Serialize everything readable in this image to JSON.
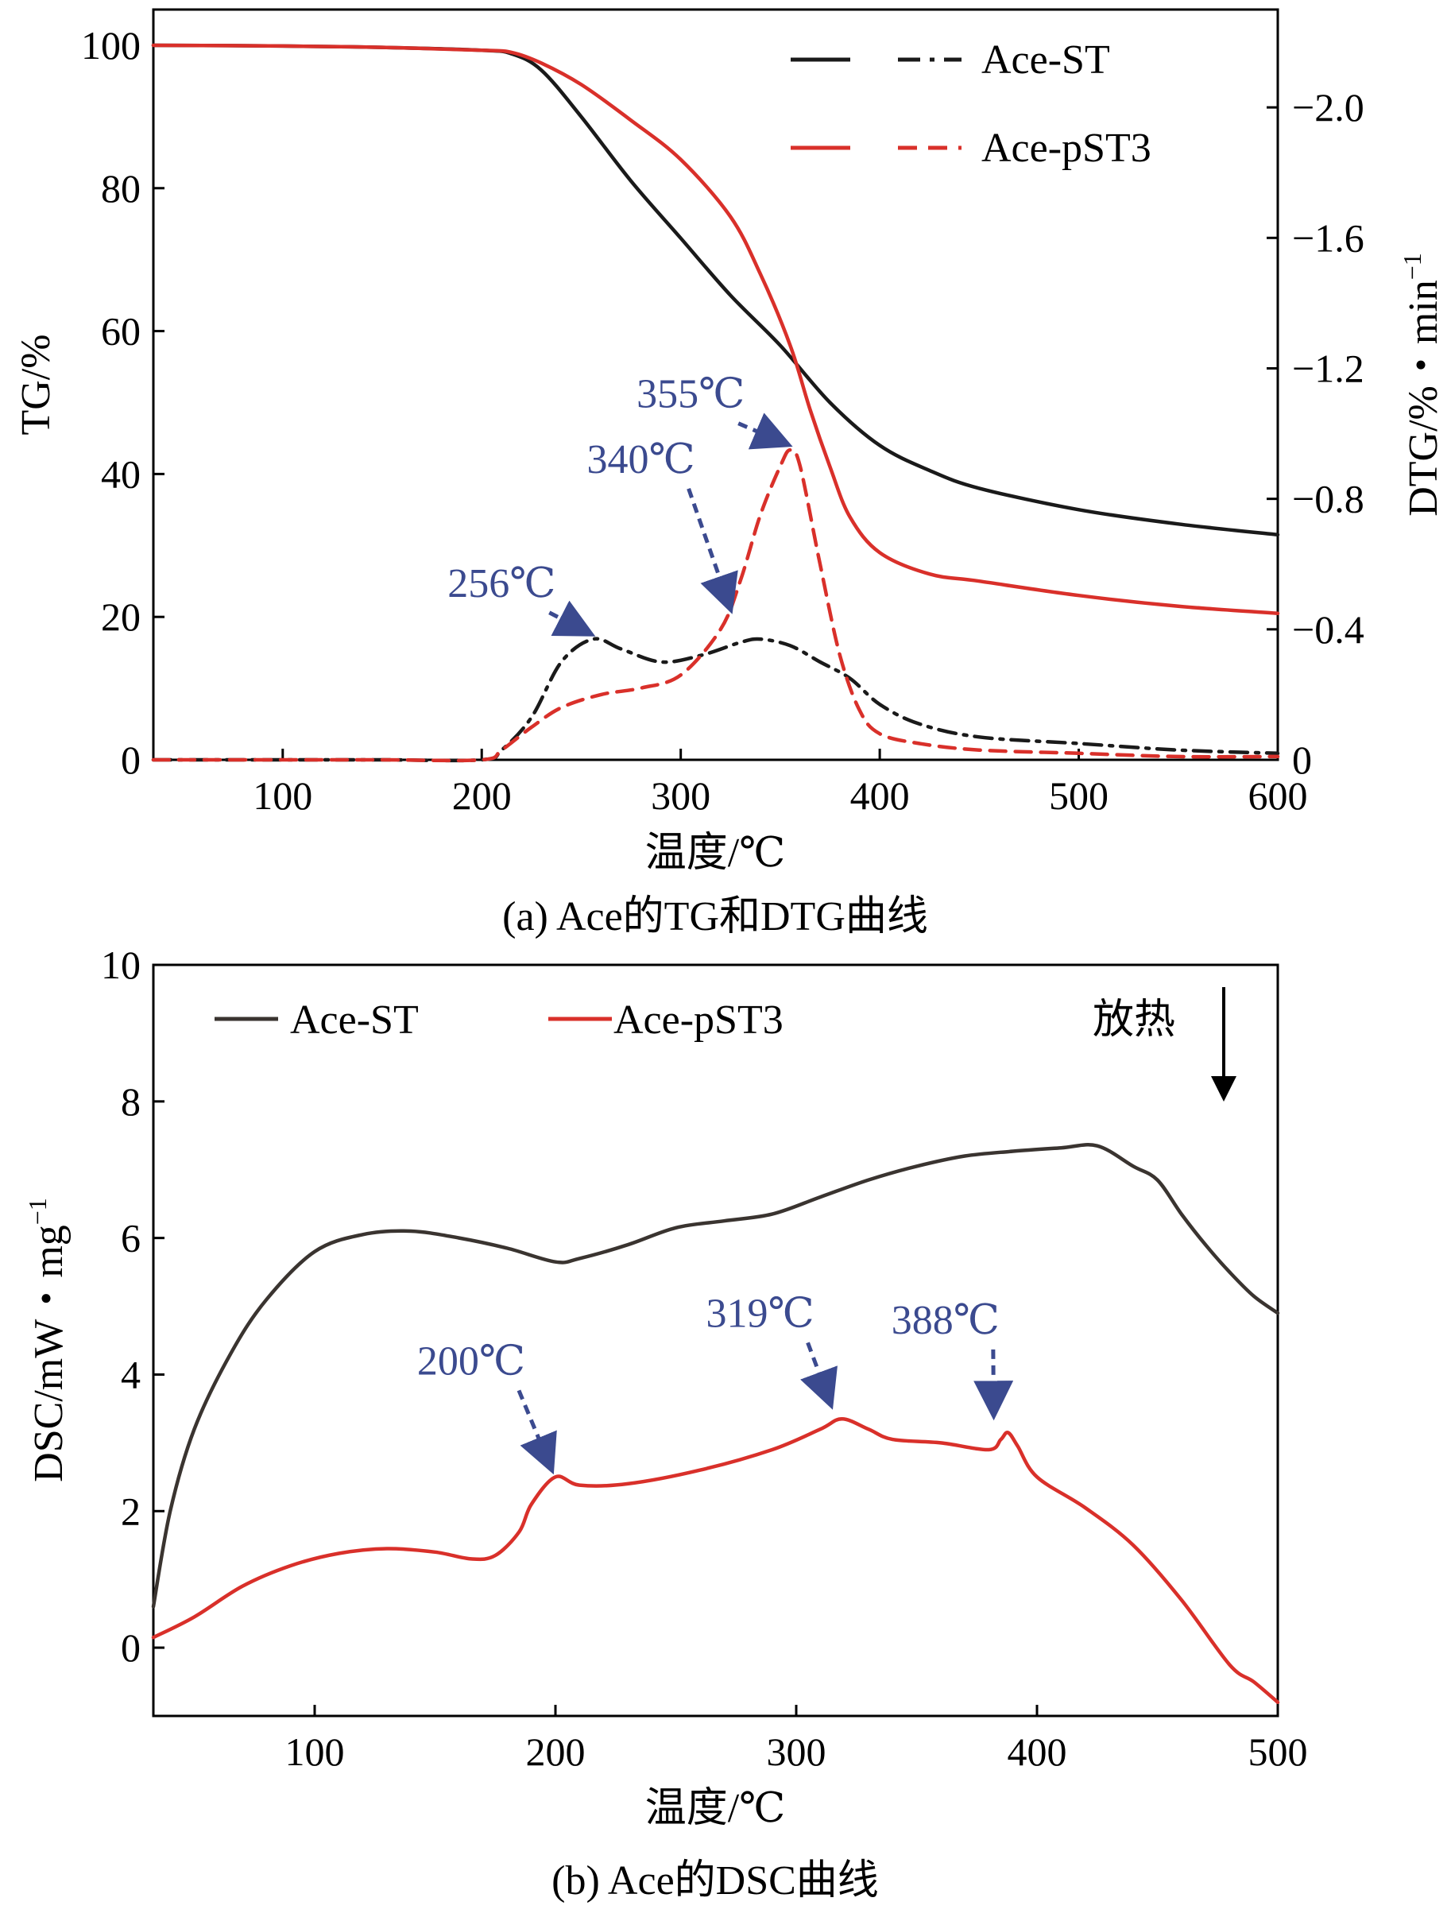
{
  "colors": {
    "black": "#1a1a1a",
    "dark": "#3a3430",
    "red": "#d9302a",
    "annot": "#3b4a8f"
  },
  "chart_data": [
    {
      "id": "tg_dtg",
      "type": "line",
      "caption": "(a) Ace的TG和DTG曲线",
      "xlabel": "温度/℃",
      "ylabel": "TG/%",
      "y2label": "DTG/%・min",
      "y2label_sup": "−1",
      "xlim": [
        35,
        600
      ],
      "ylim": [
        0,
        105
      ],
      "y2lim": [
        0,
        -2.3
      ],
      "xticks": [
        "100",
        "200",
        "300",
        "400",
        "500",
        "600"
      ],
      "yticks": [
        "0",
        "20",
        "40",
        "60",
        "80",
        "100"
      ],
      "y2ticks": [
        "0",
        "−0.4",
        "−0.8",
        "−1.2",
        "−1.6",
        "−2.0"
      ],
      "legend": {
        "position": "top-right",
        "entries": [
          "Ace-ST",
          "Ace-pST3"
        ]
      },
      "series": [
        {
          "name": "Ace-ST",
          "axis": "left",
          "style": "solid",
          "color": "black",
          "x": [
            35,
            100,
            150,
            200,
            215,
            230,
            250,
            275,
            300,
            325,
            350,
            375,
            400,
            425,
            450,
            500,
            550,
            600
          ],
          "y": [
            100,
            99.9,
            99.7,
            99.3,
            98.8,
            96.5,
            90,
            81,
            73,
            65,
            58,
            50,
            44,
            40.5,
            38,
            35,
            33,
            31.5
          ]
        },
        {
          "name": "Ace-pST3",
          "axis": "left",
          "style": "solid",
          "color": "red",
          "x": [
            35,
            100,
            150,
            200,
            215,
            230,
            250,
            275,
            300,
            325,
            340,
            355,
            365,
            375,
            385,
            400,
            425,
            450,
            500,
            550,
            600
          ],
          "y": [
            100,
            99.9,
            99.7,
            99.3,
            99,
            97.5,
            94.5,
            89.5,
            84,
            76,
            68,
            58,
            49,
            41,
            34,
            29,
            26,
            25,
            23,
            21.5,
            20.5
          ]
        },
        {
          "name": "Ace-ST",
          "axis": "right",
          "style": "dashdot",
          "color": "black",
          "x": [
            35,
            100,
            150,
            200,
            210,
            225,
            240,
            256,
            270,
            290,
            310,
            330,
            340,
            355,
            370,
            385,
            400,
            420,
            450,
            500,
            550,
            600
          ],
          "y": [
            0,
            0,
            0,
            0,
            -0.03,
            -0.13,
            -0.3,
            -0.37,
            -0.34,
            -0.3,
            -0.32,
            -0.36,
            -0.37,
            -0.35,
            -0.3,
            -0.25,
            -0.17,
            -0.11,
            -0.07,
            -0.05,
            -0.03,
            -0.02
          ]
        },
        {
          "name": "Ace-pST3",
          "axis": "right",
          "style": "dash",
          "color": "red",
          "x": [
            35,
            100,
            150,
            200,
            210,
            225,
            240,
            260,
            280,
            300,
            320,
            330,
            340,
            350,
            355,
            360,
            370,
            380,
            390,
            400,
            420,
            450,
            500,
            550,
            600
          ],
          "y": [
            0,
            0,
            0,
            0,
            -0.03,
            -0.1,
            -0.16,
            -0.2,
            -0.22,
            -0.26,
            -0.4,
            -0.55,
            -0.75,
            -0.9,
            -0.95,
            -0.9,
            -0.6,
            -0.32,
            -0.15,
            -0.08,
            -0.05,
            -0.03,
            -0.02,
            -0.01,
            -0.01
          ]
        }
      ],
      "annotations": [
        {
          "text": "256℃",
          "tx": 210,
          "ty": 0.5,
          "ax": 256,
          "ay": -0.37
        },
        {
          "text": "340℃",
          "tx": 280,
          "ty": 0.88,
          "ax": 327,
          "ay": -0.45
        },
        {
          "text": "355℃",
          "tx": 305,
          "ty": 1.08,
          "ax": 355,
          "ay": -0.95
        }
      ]
    },
    {
      "id": "dsc",
      "type": "line",
      "caption": "(b) Ace的DSC曲线",
      "xlabel": "温度/℃",
      "ylabel": "DSC/mW・mg",
      "ylabel_sup": "−1",
      "xlim": [
        33,
        500
      ],
      "ylim": [
        -1,
        10
      ],
      "xticks": [
        "100",
        "200",
        "300",
        "400",
        "500"
      ],
      "yticks": [
        "0",
        "2",
        "4",
        "6",
        "8",
        "10"
      ],
      "legend": {
        "position": "top-left",
        "entries": [
          "Ace-ST",
          "Ace-pST3"
        ]
      },
      "exotherm_label": "放热",
      "series": [
        {
          "name": "Ace-ST",
          "color": "dark",
          "x": [
            33,
            40,
            50,
            65,
            80,
            100,
            120,
            140,
            160,
            180,
            200,
            210,
            230,
            250,
            270,
            290,
            310,
            330,
            350,
            370,
            390,
            410,
            425,
            440,
            450,
            460,
            470,
            480,
            490,
            500
          ],
          "y": [
            0.6,
            2.0,
            3.2,
            4.3,
            5.1,
            5.8,
            6.05,
            6.1,
            6.0,
            5.85,
            5.65,
            5.7,
            5.9,
            6.15,
            6.25,
            6.35,
            6.6,
            6.85,
            7.05,
            7.2,
            7.27,
            7.32,
            7.35,
            7.05,
            6.85,
            6.35,
            5.9,
            5.5,
            5.15,
            4.9
          ]
        },
        {
          "name": "Ace-pST3",
          "color": "red",
          "x": [
            33,
            50,
            70,
            90,
            110,
            130,
            150,
            165,
            175,
            185,
            190,
            200,
            210,
            230,
            260,
            290,
            310,
            319,
            330,
            340,
            360,
            380,
            385,
            388,
            392,
            400,
            420,
            440,
            460,
            480,
            490,
            500
          ],
          "y": [
            0.15,
            0.45,
            0.9,
            1.2,
            1.38,
            1.45,
            1.4,
            1.3,
            1.35,
            1.7,
            2.1,
            2.5,
            2.38,
            2.4,
            2.6,
            2.9,
            3.2,
            3.35,
            3.2,
            3.05,
            3.0,
            2.9,
            3.05,
            3.15,
            2.95,
            2.5,
            2.05,
            1.5,
            0.7,
            -0.25,
            -0.5,
            -0.8
          ]
        }
      ],
      "annotations": [
        {
          "text": "200℃",
          "tx": 165,
          "ty": 4.0,
          "ax": 200,
          "ay": 2.55
        },
        {
          "text": "319℃",
          "tx": 285,
          "ty": 4.7,
          "ax": 316,
          "ay": 3.5
        },
        {
          "text": "388℃",
          "tx": 362,
          "ty": 4.6,
          "ax": 384,
          "ay": 3.35
        }
      ]
    }
  ]
}
